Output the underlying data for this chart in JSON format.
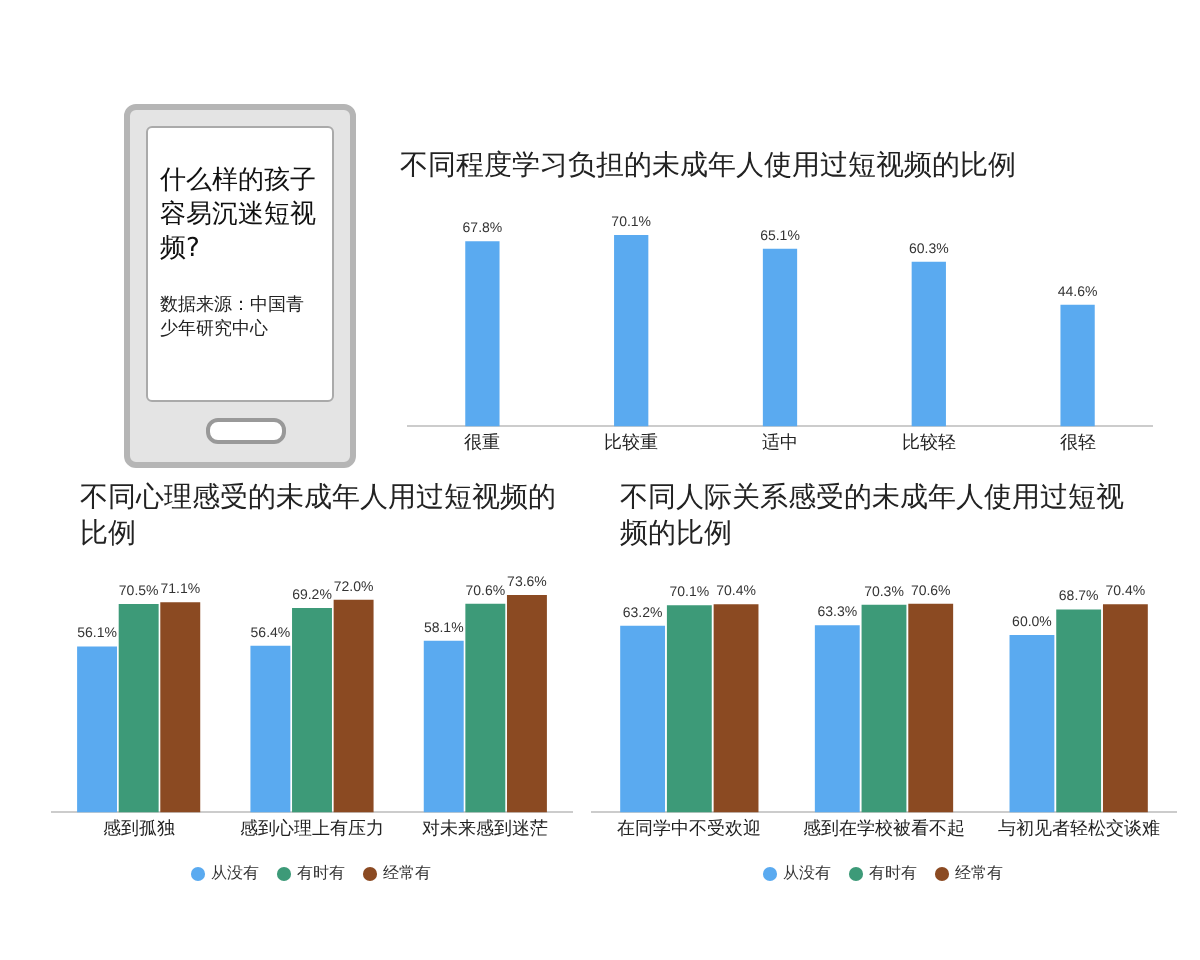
{
  "chart_data": [
    {
      "type": "other",
      "title": "什么样的孩子容易沉迷短视频?",
      "annotations": [
        "数据来源：中国青少年研究中心"
      ]
    },
    {
      "type": "bar",
      "title": "不同程度学习负担的未成年人使用过短视频的比例",
      "categories": [
        "很重",
        "比较重",
        "适中",
        "比较轻",
        "很轻"
      ],
      "tick_labels": "x",
      "grid": false,
      "legend": false,
      "series": [
        {
          "color": "#5aaaf0",
          "values": [
            67.8,
            70.1,
            65.1,
            60.3,
            44.6
          ],
          "value_labels": [
            "67.8%",
            "70.1%",
            "65.1%",
            "60.3%",
            "44.6%"
          ]
        }
      ]
    },
    {
      "type": "bar",
      "title": "不同心理感受的未成年人用过短视频的比例",
      "categories": [
        "感到孤独",
        "感到心理上有压力",
        "对未来感到迷茫"
      ],
      "tick_labels": "x",
      "grid": false,
      "legend": "bottom",
      "series": [
        {
          "name": "从没有",
          "color": "#5aaaf0",
          "values": [
            56.1,
            56.4,
            58.1
          ],
          "value_labels": [
            "56.1%",
            "56.4%",
            "58.1%"
          ]
        },
        {
          "name": "有时有",
          "color": "#3d9a78",
          "values": [
            70.5,
            69.2,
            70.6
          ],
          "value_labels": [
            "70.5%",
            "69.2%",
            "70.6%"
          ]
        },
        {
          "name": "经常有",
          "color": "#8b4a22",
          "values": [
            71.1,
            72.0,
            73.6
          ],
          "value_labels": [
            "71.1%",
            "72.0%",
            "73.6%"
          ]
        }
      ]
    },
    {
      "type": "bar",
      "title": "不同人际关系感受的未成年人使用过短视频的比例",
      "categories": [
        "在同学中不受欢迎",
        "感到在学校被看不起",
        "与初见者轻松交谈难"
      ],
      "tick_labels": "x",
      "grid": false,
      "legend": "bottom",
      "series": [
        {
          "name": "从没有",
          "color": "#5aaaf0",
          "values": [
            63.2,
            63.3,
            60.0
          ],
          "value_labels": [
            "63.2%",
            "63.3%",
            "60.0%"
          ]
        },
        {
          "name": "有时有",
          "color": "#3d9a78",
          "values": [
            70.1,
            70.3,
            68.7
          ],
          "value_labels": [
            "70.1%",
            "70.3%",
            "68.7%"
          ]
        },
        {
          "name": "经常有",
          "color": "#8b4a22",
          "values": [
            70.4,
            70.6,
            70.4
          ],
          "value_labels": [
            "70.4%",
            "70.6%",
            "70.4%"
          ]
        }
      ]
    }
  ]
}
